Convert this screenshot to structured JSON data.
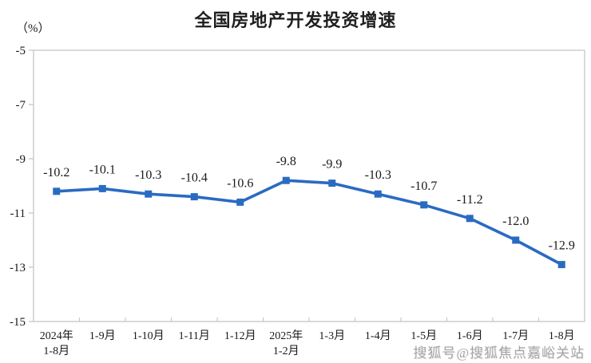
{
  "page": {
    "watermark": "搜狐号@搜狐焦点嘉峪关站"
  },
  "chart_data": {
    "type": "line",
    "title": "全国房地产开发投资增速",
    "ylabel": "（%）",
    "xlabel": "",
    "categories": [
      "2024年1-8月",
      "1-9月",
      "1-10月",
      "1-11月",
      "1-12月",
      "2025年1-2月",
      "1-3月",
      "1-4月",
      "1-5月",
      "1-6月",
      "1-7月",
      "1-8月"
    ],
    "category_lines": [
      [
        "2024年",
        "1-8月"
      ],
      [
        "1-9月"
      ],
      [
        "1-10月"
      ],
      [
        "1-11月"
      ],
      [
        "1-12月"
      ],
      [
        "2025年",
        "1-2月"
      ],
      [
        "1-3月"
      ],
      [
        "1-4月"
      ],
      [
        "1-5月"
      ],
      [
        "1-6月"
      ],
      [
        "1-7月"
      ],
      [
        "1-8月"
      ]
    ],
    "values": [
      -10.2,
      -10.1,
      -10.3,
      -10.4,
      -10.6,
      -9.8,
      -9.9,
      -10.3,
      -10.7,
      -11.2,
      -12.0,
      -12.9
    ],
    "data_labels": [
      "-10.2",
      "-10.1",
      "-10.3",
      "-10.4",
      "-10.6",
      "-9.8",
      "-9.9",
      "-10.3",
      "-10.7",
      "-11.2",
      "-12.0",
      "-12.9"
    ],
    "y_ticks": [
      -5,
      -7,
      -9,
      -11,
      -13,
      -15
    ],
    "ylim": [
      -15,
      -5
    ],
    "grid": false,
    "legend": "none",
    "marker": "square",
    "colors": {
      "line": "#2a6bc2",
      "marker": "#2a6bc2",
      "axis": "#c6c6c6",
      "text": "#1a1a1a",
      "title": "#1f1f1f",
      "watermark": "#a6a6a6"
    }
  }
}
